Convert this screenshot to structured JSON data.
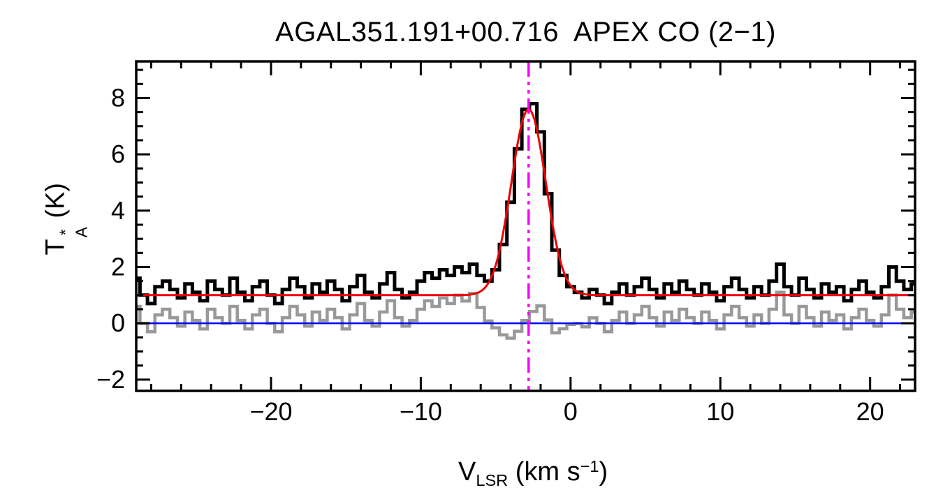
{
  "chart_data": {
    "type": "line",
    "title": "AGAL351.191+00.716  APEX CO (2−1)",
    "xlabel": "V_LSR (km s^−1)",
    "ylabel": "T_A^* (K)",
    "xlabel_parts": {
      "symbol": "V",
      "sub": "LSR",
      "unit_open": " (km s",
      "exp": "−1",
      "unit_close": ")"
    },
    "ylabel_parts": {
      "symbol": "T",
      "sup": "*",
      "sub": "A",
      "unit": " (K)"
    },
    "xlim": [
      -29,
      23
    ],
    "ylim": [
      -2.4,
      9.3
    ],
    "xticks": [
      -20,
      -10,
      0,
      10,
      20
    ],
    "yticks": [
      -2,
      0,
      2,
      4,
      6,
      8
    ],
    "x_minor_step": 2,
    "y_minor_step": 0.5,
    "grid": false,
    "legend": "none",
    "series": [
      {
        "name": "spectrum",
        "style": "histogram",
        "color": "#000000",
        "x_start": -29,
        "dx": 0.5,
        "values": [
          1.6,
          1.0,
          0.7,
          1.3,
          1.5,
          1.2,
          0.9,
          1.4,
          1.1,
          0.8,
          1.5,
          1.2,
          1.0,
          1.6,
          1.1,
          0.8,
          1.3,
          1.5,
          1.0,
          0.7,
          1.2,
          1.6,
          1.3,
          0.9,
          1.4,
          1.1,
          1.5,
          1.2,
          0.8,
          1.3,
          1.7,
          1.1,
          0.9,
          1.4,
          1.8,
          1.2,
          0.9,
          1.1,
          1.5,
          1.8,
          1.6,
          1.9,
          1.7,
          2.0,
          1.8,
          2.1,
          1.7,
          1.5,
          1.9,
          2.8,
          4.3,
          6.2,
          7.6,
          7.8,
          6.8,
          4.6,
          2.6,
          1.7,
          1.3,
          1.1,
          0.9,
          1.2,
          1.0,
          0.7,
          1.1,
          1.4,
          1.0,
          1.3,
          1.6,
          1.2,
          0.9,
          1.4,
          1.1,
          1.5,
          1.2,
          1.0,
          1.4,
          1.1,
          0.8,
          1.3,
          1.6,
          1.2,
          0.9,
          1.3,
          1.0,
          1.5,
          2.1,
          1.3,
          1.0,
          1.6,
          1.2,
          0.9,
          1.4,
          1.1,
          1.3,
          0.8,
          1.2,
          1.5,
          1.1,
          0.9,
          1.3,
          2.0,
          1.5,
          1.2,
          1.4
        ]
      },
      {
        "name": "gaussian_fit",
        "style": "curve",
        "color": "#ee0000",
        "baseline": 1.0,
        "amplitude": 6.6,
        "center": -2.8,
        "sigma": 1.15
      },
      {
        "name": "residual",
        "style": "histogram",
        "color": "#999999",
        "derived": "spectrum minus gaussian_fit"
      }
    ],
    "reference_lines": [
      {
        "name": "zero-baseline",
        "orientation": "horizontal",
        "value": 0,
        "color": "#0000ff",
        "linestyle": "solid"
      },
      {
        "name": "velocity-marker",
        "orientation": "vertical",
        "value": -2.8,
        "color": "#ff00ff",
        "linestyle": "dash-dot"
      }
    ]
  }
}
